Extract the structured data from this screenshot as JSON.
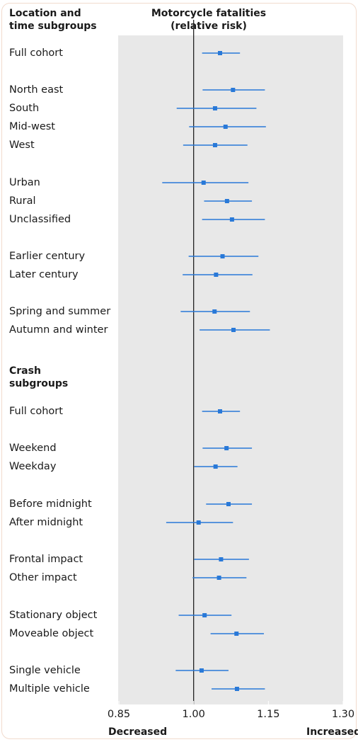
{
  "header": {
    "left_line1": "Location and",
    "left_line2": "time subgroups",
    "right_line1": "Motorcycle fatalities",
    "right_line2": "(relative risk)"
  },
  "section2": {
    "line1": "Crash",
    "line2": "subgroups"
  },
  "colors": {
    "marker": "#2979d8",
    "panel": "#e8e8e8",
    "reference_line": "#222222",
    "frame_border": "#f1dbcd"
  },
  "chart_data": {
    "type": "forest",
    "title": "Motorcycle fatalities (relative risk)",
    "xlim": [
      0.85,
      1.3
    ],
    "reference": 1.0,
    "ticks": [
      "0.85",
      "1.00",
      "1.15",
      "1.30"
    ],
    "tick_values": [
      0.85,
      1.0,
      1.15,
      1.3
    ],
    "xlabel_left": "Decreased",
    "xlabel_right": "Increased",
    "rows": [
      {
        "label": "Full cohort",
        "estimate": 1.053,
        "low": 1.017,
        "high": 1.093,
        "group": "location"
      },
      {
        "label": "North east",
        "estimate": 1.079,
        "low": 1.018,
        "high": 1.143,
        "group": "location"
      },
      {
        "label": "South",
        "estimate": 1.043,
        "low": 0.966,
        "high": 1.126,
        "group": "location"
      },
      {
        "label": "Mid-west",
        "estimate": 1.064,
        "low": 0.991,
        "high": 1.145,
        "group": "location"
      },
      {
        "label": "West",
        "estimate": 1.043,
        "low": 0.979,
        "high": 1.108,
        "group": "location"
      },
      {
        "label": "Urban",
        "estimate": 1.02,
        "low": 0.937,
        "high": 1.11,
        "group": "location"
      },
      {
        "label": "Rural",
        "estimate": 1.067,
        "low": 1.021,
        "high": 1.117,
        "group": "location"
      },
      {
        "label": "Unclassified",
        "estimate": 1.077,
        "low": 1.017,
        "high": 1.143,
        "group": "location"
      },
      {
        "label": "Earlier century",
        "estimate": 1.058,
        "low": 0.99,
        "high": 1.13,
        "group": "location"
      },
      {
        "label": "Later century",
        "estimate": 1.045,
        "low": 0.978,
        "high": 1.118,
        "group": "location"
      },
      {
        "label": "Spring and summer",
        "estimate": 1.042,
        "low": 0.974,
        "high": 1.113,
        "group": "location"
      },
      {
        "label": "Autumn and winter",
        "estimate": 1.08,
        "low": 1.012,
        "high": 1.153,
        "group": "location"
      },
      {
        "label": "Full cohort",
        "estimate": 1.053,
        "low": 1.017,
        "high": 1.093,
        "group": "crash"
      },
      {
        "label": "Weekend",
        "estimate": 1.066,
        "low": 1.018,
        "high": 1.117,
        "group": "crash"
      },
      {
        "label": "Weekday",
        "estimate": 1.044,
        "low": 1.001,
        "high": 1.088,
        "group": "crash"
      },
      {
        "label": "Before midnight",
        "estimate": 1.07,
        "low": 1.025,
        "high": 1.117,
        "group": "crash"
      },
      {
        "label": "After midnight",
        "estimate": 1.01,
        "low": 0.945,
        "high": 1.079,
        "group": "crash"
      },
      {
        "label": "Frontal impact",
        "estimate": 1.055,
        "low": 1.001,
        "high": 1.111,
        "group": "crash"
      },
      {
        "label": "Other impact",
        "estimate": 1.051,
        "low": 0.998,
        "high": 1.106,
        "group": "crash"
      },
      {
        "label": "Stationary object",
        "estimate": 1.022,
        "low": 0.97,
        "high": 1.076,
        "group": "crash"
      },
      {
        "label": "Moveable object",
        "estimate": 1.086,
        "low": 1.034,
        "high": 1.141,
        "group": "crash"
      },
      {
        "label": "Single vehicle",
        "estimate": 1.016,
        "low": 0.964,
        "high": 1.07,
        "group": "crash"
      },
      {
        "label": "Multiple vehicle",
        "estimate": 1.087,
        "low": 1.036,
        "high": 1.143,
        "group": "crash"
      }
    ]
  }
}
